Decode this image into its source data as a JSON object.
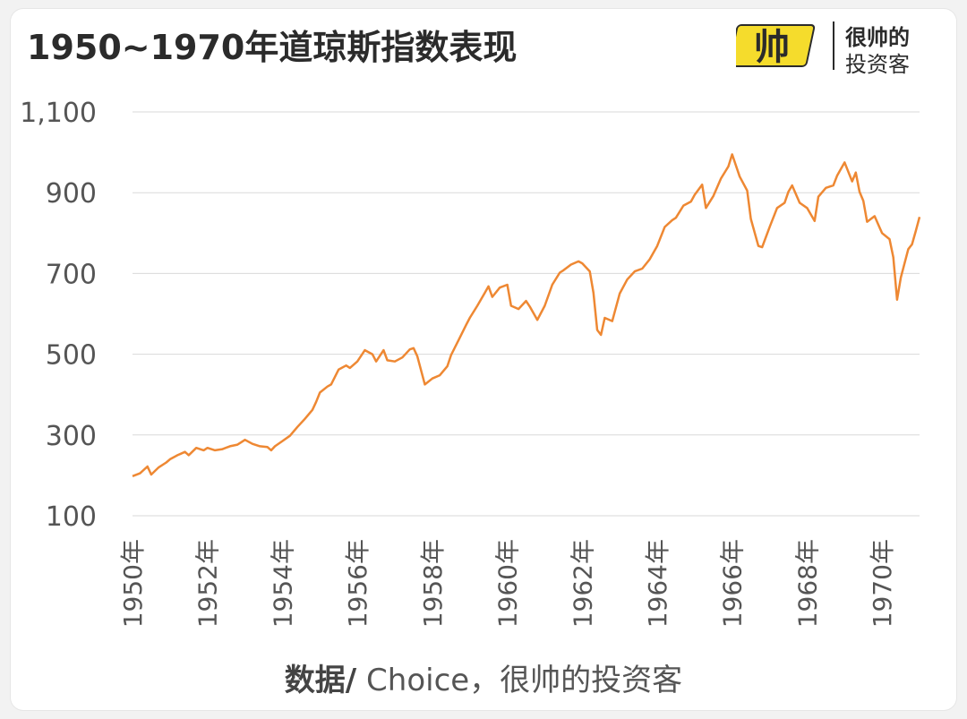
{
  "title": "1950~1970年道琼斯指数表现",
  "logo": {
    "mark_text": "帅",
    "line1": "很帅的",
    "line2": "投资客"
  },
  "source": {
    "label": "数据/",
    "text": " Choice，很帅的投资客"
  },
  "colors": {
    "line": "#ee8833",
    "grid": "#d9d9d9",
    "axis_text": "#555555",
    "logo_yellow": "#f5dc2c"
  },
  "chart_data": {
    "type": "line",
    "title": "1950~1970年道琼斯指数表现",
    "xlabel": "",
    "ylabel": "",
    "ylim": [
      100,
      1100
    ],
    "y_ticks": [
      100,
      300,
      500,
      700,
      900,
      1100
    ],
    "y_tick_labels": [
      "100",
      "300",
      "500",
      "700",
      "900",
      "1,100"
    ],
    "x_ticks": [
      1950,
      1952,
      1954,
      1956,
      1958,
      1960,
      1962,
      1964,
      1966,
      1968,
      1970
    ],
    "x_tick_labels": [
      "1950年",
      "1952年",
      "1954年",
      "1956年",
      "1958年",
      "1960年",
      "1962年",
      "1964年",
      "1966年",
      "1968年",
      "1970年"
    ],
    "grid": true,
    "legend": "none",
    "series": [
      {
        "values": [
          [
            1950.0,
            198
          ],
          [
            1950.2,
            205
          ],
          [
            1950.4,
            222
          ],
          [
            1950.5,
            202
          ],
          [
            1950.7,
            220
          ],
          [
            1950.9,
            232
          ],
          [
            1951.0,
            240
          ],
          [
            1951.2,
            250
          ],
          [
            1951.4,
            258
          ],
          [
            1951.5,
            250
          ],
          [
            1951.7,
            268
          ],
          [
            1951.9,
            262
          ],
          [
            1952.0,
            268
          ],
          [
            1952.2,
            262
          ],
          [
            1952.4,
            265
          ],
          [
            1952.6,
            272
          ],
          [
            1952.8,
            276
          ],
          [
            1952.9,
            282
          ],
          [
            1953.0,
            288
          ],
          [
            1953.2,
            278
          ],
          [
            1953.4,
            272
          ],
          [
            1953.6,
            270
          ],
          [
            1953.7,
            262
          ],
          [
            1953.8,
            272
          ],
          [
            1954.0,
            285
          ],
          [
            1954.2,
            298
          ],
          [
            1954.4,
            320
          ],
          [
            1954.6,
            340
          ],
          [
            1954.8,
            362
          ],
          [
            1954.9,
            382
          ],
          [
            1955.0,
            405
          ],
          [
            1955.2,
            420
          ],
          [
            1955.3,
            425
          ],
          [
            1955.5,
            462
          ],
          [
            1955.7,
            472
          ],
          [
            1955.8,
            466
          ],
          [
            1956.0,
            482
          ],
          [
            1956.2,
            510
          ],
          [
            1956.4,
            500
          ],
          [
            1956.5,
            482
          ],
          [
            1956.7,
            510
          ],
          [
            1956.8,
            485
          ],
          [
            1957.0,
            482
          ],
          [
            1957.2,
            492
          ],
          [
            1957.4,
            512
          ],
          [
            1957.5,
            515
          ],
          [
            1957.6,
            495
          ],
          [
            1957.8,
            425
          ],
          [
            1958.0,
            440
          ],
          [
            1958.2,
            448
          ],
          [
            1958.4,
            470
          ],
          [
            1958.5,
            498
          ],
          [
            1958.7,
            535
          ],
          [
            1958.9,
            572
          ],
          [
            1959.0,
            590
          ],
          [
            1959.2,
            620
          ],
          [
            1959.4,
            652
          ],
          [
            1959.5,
            668
          ],
          [
            1959.6,
            642
          ],
          [
            1959.8,
            665
          ],
          [
            1960.0,
            672
          ],
          [
            1960.1,
            620
          ],
          [
            1960.3,
            612
          ],
          [
            1960.5,
            632
          ],
          [
            1960.6,
            618
          ],
          [
            1960.8,
            585
          ],
          [
            1961.0,
            620
          ],
          [
            1961.2,
            672
          ],
          [
            1961.4,
            702
          ],
          [
            1961.5,
            708
          ],
          [
            1961.7,
            722
          ],
          [
            1961.9,
            730
          ],
          [
            1962.0,
            725
          ],
          [
            1962.2,
            705
          ],
          [
            1962.3,
            652
          ],
          [
            1962.4,
            560
          ],
          [
            1962.5,
            548
          ],
          [
            1962.6,
            590
          ],
          [
            1962.8,
            582
          ],
          [
            1963.0,
            650
          ],
          [
            1963.2,
            685
          ],
          [
            1963.4,
            705
          ],
          [
            1963.6,
            712
          ],
          [
            1963.8,
            735
          ],
          [
            1964.0,
            768
          ],
          [
            1964.2,
            815
          ],
          [
            1964.4,
            832
          ],
          [
            1964.5,
            838
          ],
          [
            1964.7,
            868
          ],
          [
            1964.9,
            878
          ],
          [
            1965.0,
            895
          ],
          [
            1965.2,
            920
          ],
          [
            1965.3,
            862
          ],
          [
            1965.5,
            892
          ],
          [
            1965.7,
            935
          ],
          [
            1965.9,
            965
          ],
          [
            1966.0,
            995
          ],
          [
            1966.2,
            940
          ],
          [
            1966.4,
            905
          ],
          [
            1966.5,
            835
          ],
          [
            1966.7,
            768
          ],
          [
            1966.8,
            765
          ],
          [
            1967.0,
            815
          ],
          [
            1967.2,
            862
          ],
          [
            1967.4,
            875
          ],
          [
            1967.5,
            902
          ],
          [
            1967.6,
            918
          ],
          [
            1967.8,
            875
          ],
          [
            1968.0,
            862
          ],
          [
            1968.2,
            830
          ],
          [
            1968.3,
            890
          ],
          [
            1968.5,
            912
          ],
          [
            1968.7,
            918
          ],
          [
            1968.8,
            942
          ],
          [
            1969.0,
            975
          ],
          [
            1969.2,
            928
          ],
          [
            1969.3,
            950
          ],
          [
            1969.4,
            902
          ],
          [
            1969.5,
            880
          ],
          [
            1969.6,
            828
          ],
          [
            1969.8,
            842
          ],
          [
            1970.0,
            800
          ],
          [
            1970.2,
            785
          ],
          [
            1970.3,
            740
          ],
          [
            1970.4,
            635
          ],
          [
            1970.5,
            690
          ],
          [
            1970.7,
            760
          ],
          [
            1970.8,
            772
          ],
          [
            1970.9,
            805
          ],
          [
            1971.0,
            840
          ]
        ]
      }
    ]
  }
}
